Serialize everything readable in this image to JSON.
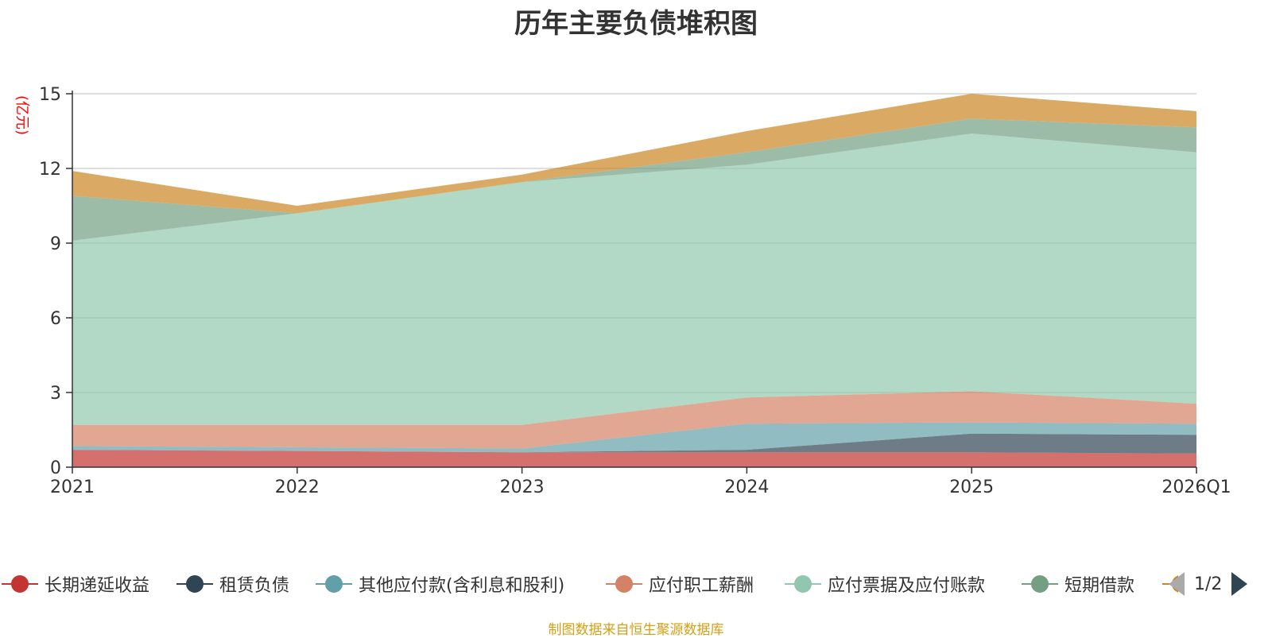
{
  "chart_data": {
    "type": "area",
    "stacked": true,
    "title": "历年主要负债堆积图",
    "ylabel": "(亿元)",
    "categories": [
      "2021",
      "2022",
      "2023",
      "2024",
      "2025",
      "2026Q1"
    ],
    "ylim": [
      0,
      15
    ],
    "yticks": [
      "0",
      "3",
      "6",
      "9",
      "12",
      "15"
    ],
    "series": [
      {
        "name": "长期递延收益",
        "color": "#c23531",
        "values": [
          0.7,
          0.65,
          0.6,
          0.6,
          0.6,
          0.55
        ]
      },
      {
        "name": "租赁负债",
        "color": "#2f4554",
        "values": [
          0.0,
          0.0,
          0.0,
          0.1,
          0.75,
          0.75
        ]
      },
      {
        "name": "其他应付款(含利息和股利)",
        "color": "#61a0a8",
        "values": [
          0.15,
          0.15,
          0.15,
          1.05,
          0.45,
          0.45
        ]
      },
      {
        "name": "应付职工薪酬",
        "color": "#d48265",
        "values": [
          0.85,
          0.9,
          0.95,
          1.05,
          1.25,
          0.8
        ]
      },
      {
        "name": "应付票据及应付账款",
        "color": "#91c7ae",
        "values": [
          7.4,
          8.5,
          9.75,
          9.35,
          10.35,
          10.1
        ]
      },
      {
        "name": "短期借款",
        "color": "#749f83",
        "values": [
          1.8,
          0.0,
          0.0,
          0.5,
          0.6,
          1.0
        ]
      },
      {
        "name": "",
        "color": "#ca8622",
        "values": [
          1.0,
          0.3,
          0.3,
          0.85,
          1.0,
          0.65
        ]
      }
    ]
  },
  "legend": {
    "items": [
      {
        "name": "长期递延收益",
        "color": "#c23531"
      },
      {
        "name": "租赁负债",
        "color": "#2f4554"
      },
      {
        "name": "其他应付款(含利息和股利)",
        "color": "#61a0a8"
      },
      {
        "name": "应付职工薪酬",
        "color": "#d48265"
      },
      {
        "name": "应付票据及应付账款",
        "color": "#91c7ae"
      },
      {
        "name": "短期借款",
        "color": "#749f83"
      },
      {
        "name": "",
        "color": "#ca8622"
      }
    ],
    "page": "1/2"
  },
  "source": "制图数据来自恒生聚源数据库"
}
